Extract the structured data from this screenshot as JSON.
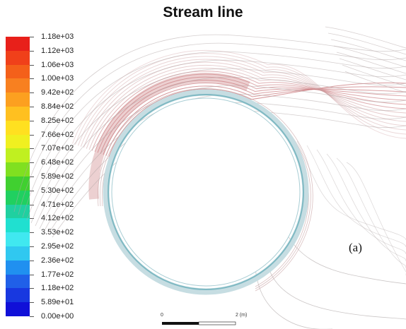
{
  "title": "Stream line",
  "legend": {
    "colors": [
      "#e8201a",
      "#f0401a",
      "#f4601a",
      "#f88020",
      "#fca020",
      "#ffc020",
      "#ffe020",
      "#f0f020",
      "#c0f020",
      "#80e020",
      "#40d030",
      "#20d060",
      "#20d0a0",
      "#20e0d0",
      "#40e8f0",
      "#30c8f0",
      "#2090f0",
      "#2060e8",
      "#1838e0",
      "#1010d8"
    ],
    "ticks": [
      "1.18e+03",
      "1.12e+03",
      "1.06e+03",
      "1.00e+03",
      "9.42e+02",
      "8.84e+02",
      "8.25e+02",
      "7.66e+02",
      "7.07e+02",
      "6.48e+02",
      "5.89e+02",
      "5.30e+02",
      "4.71e+02",
      "4.12e+02",
      "3.53e+02",
      "2.95e+02",
      "2.36e+02",
      "1.77e+02",
      "1.18e+02",
      "5.89e+01",
      "0.00e+00"
    ]
  },
  "panel_label": "(a)",
  "scale_bar": {
    "start_label": "0",
    "end_label": "2 (m)"
  },
  "palette": {
    "tube_stroke": "#8ec8d0",
    "hot_stream": "#c8787a",
    "cool_stream": "#b8a8a8"
  }
}
